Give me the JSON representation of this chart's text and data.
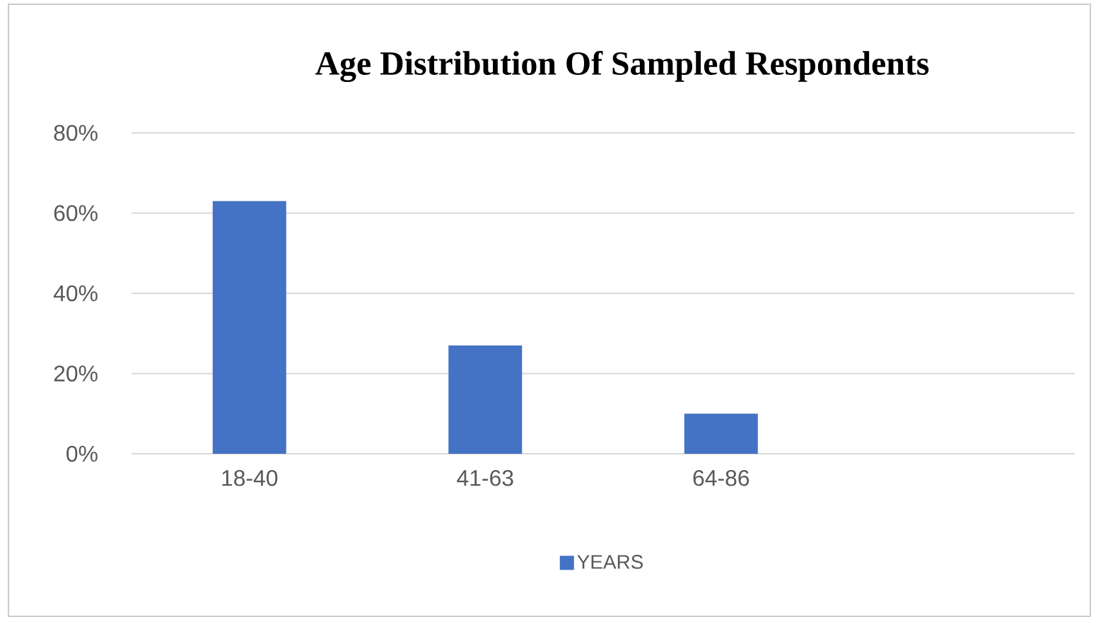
{
  "chart_data": {
    "type": "bar",
    "title": "Age Distribution Of Sampled Respondents",
    "categories": [
      "18-40",
      "41-63",
      "64-86",
      null
    ],
    "series": [
      {
        "name": "YEARS",
        "color": "#4472c4",
        "values": [
          63,
          27,
          10,
          null
        ]
      }
    ],
    "ylim": [
      0,
      80
    ],
    "yticks": [
      {
        "value": 0,
        "label": "0%"
      },
      {
        "value": 20,
        "label": "20%"
      },
      {
        "value": 40,
        "label": "40%"
      },
      {
        "value": 60,
        "label": "60%"
      },
      {
        "value": 80,
        "label": "80%"
      }
    ],
    "grid": "y",
    "legend": "bottom"
  }
}
